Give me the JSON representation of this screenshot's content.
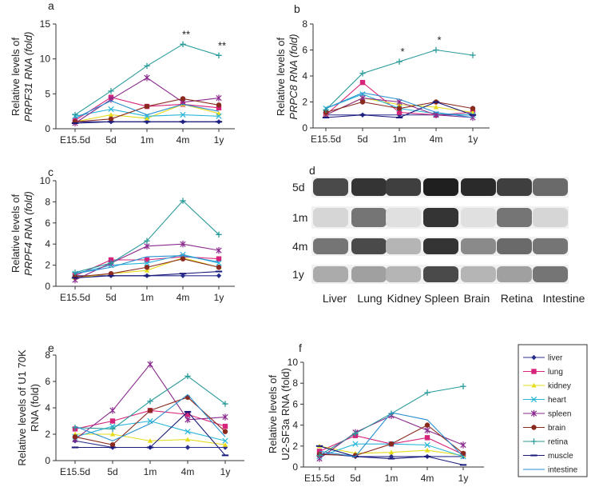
{
  "chart_data": [
    {
      "id": "a",
      "type": "line",
      "panel_label": "a",
      "ylabel_lines": [
        "Relative levels of",
        "PRPF31 RNA (fold)"
      ],
      "ylabel_italic": "PRPF31",
      "categories": [
        "E15.5d",
        "5d",
        "1m",
        "4m",
        "1y"
      ],
      "ylim": [
        0,
        15
      ],
      "yticks": [
        0,
        5,
        10,
        15
      ],
      "annotations": [
        {
          "category_index": 3,
          "text": "**"
        },
        {
          "category_index": 4,
          "text": "**"
        }
      ],
      "series": [
        {
          "name": "liver",
          "values": [
            1.0,
            1.0,
            1.0,
            1.0,
            1.0
          ]
        },
        {
          "name": "lung",
          "values": [
            1.2,
            4.5,
            3.2,
            3.5,
            3.0
          ]
        },
        {
          "name": "kidney",
          "values": [
            1.0,
            2.0,
            1.5,
            3.5,
            2.2
          ]
        },
        {
          "name": "heart",
          "values": [
            1.8,
            2.8,
            1.8,
            2.0,
            1.8
          ]
        },
        {
          "name": "spleen",
          "values": [
            0.8,
            4.2,
            7.3,
            3.8,
            4.4
          ]
        },
        {
          "name": "brain",
          "values": [
            1.0,
            1.4,
            3.2,
            4.3,
            3.4
          ]
        },
        {
          "name": "retina",
          "values": [
            2.0,
            5.4,
            9.0,
            12.1,
            10.5
          ]
        },
        {
          "name": "muscle",
          "values": [
            0.8,
            1.0,
            1.0,
            1.0,
            1.0
          ]
        },
        {
          "name": "intestine",
          "values": [
            1.5,
            4.0,
            2.0,
            3.5,
            2.5
          ]
        }
      ]
    },
    {
      "id": "b",
      "type": "line",
      "panel_label": "b",
      "ylabel_lines": [
        "Relative levels of",
        "PRPC8 RNA (fold)"
      ],
      "ylabel_italic": "PRPC8",
      "categories": [
        "E15.5d",
        "5d",
        "1m",
        "4m",
        "1y"
      ],
      "ylim": [
        0,
        8
      ],
      "yticks": [
        0,
        2,
        4,
        6,
        8
      ],
      "annotations": [
        {
          "category_index": 2,
          "text": "*"
        },
        {
          "category_index": 3,
          "text": "*"
        }
      ],
      "series": [
        {
          "name": "liver",
          "values": [
            1.0,
            1.0,
            1.0,
            1.0,
            1.0
          ]
        },
        {
          "name": "lung",
          "values": [
            1.0,
            3.5,
            1.2,
            1.0,
            1.2
          ]
        },
        {
          "name": "kidney",
          "values": [
            1.0,
            2.3,
            1.8,
            1.6,
            1.2
          ]
        },
        {
          "name": "heart",
          "values": [
            1.5,
            2.6,
            1.5,
            1.1,
            1.0
          ]
        },
        {
          "name": "spleen",
          "values": [
            1.0,
            2.3,
            2.0,
            1.0,
            0.8
          ]
        },
        {
          "name": "brain",
          "values": [
            1.2,
            2.0,
            1.5,
            2.0,
            1.5
          ]
        },
        {
          "name": "retina",
          "values": [
            1.4,
            4.2,
            5.1,
            6.0,
            5.6
          ]
        },
        {
          "name": "muscle",
          "values": [
            0.8,
            1.0,
            0.8,
            2.0,
            1.0
          ]
        },
        {
          "name": "intestine",
          "values": [
            1.5,
            2.7,
            2.2,
            1.2,
            0.8
          ]
        }
      ]
    },
    {
      "id": "c",
      "type": "line",
      "panel_label": "c",
      "ylabel_lines": [
        "Relative levels of",
        "PRPF4 RNA (fold)"
      ],
      "ylabel_italic": "PRPF4",
      "categories": [
        "E15.5d",
        "5d",
        "1m",
        "4m",
        "1y"
      ],
      "ylim": [
        0,
        10
      ],
      "yticks": [
        0,
        2,
        4,
        6,
        8,
        10
      ],
      "annotations": [],
      "series": [
        {
          "name": "liver",
          "values": [
            1.0,
            1.0,
            1.0,
            1.0,
            1.0
          ]
        },
        {
          "name": "lung",
          "values": [
            1.0,
            2.5,
            2.5,
            2.8,
            2.6
          ]
        },
        {
          "name": "kidney",
          "values": [
            0.8,
            1.2,
            1.5,
            2.7,
            1.8
          ]
        },
        {
          "name": "heart",
          "values": [
            1.2,
            2.0,
            2.2,
            3.0,
            2.2
          ]
        },
        {
          "name": "spleen",
          "values": [
            0.6,
            2.2,
            3.8,
            4.0,
            3.4
          ]
        },
        {
          "name": "brain",
          "values": [
            0.9,
            1.2,
            1.8,
            2.6,
            1.8
          ]
        },
        {
          "name": "retina",
          "values": [
            1.3,
            2.2,
            4.3,
            8.1,
            4.9
          ]
        },
        {
          "name": "muscle",
          "values": [
            0.8,
            1.0,
            1.0,
            1.2,
            1.4
          ]
        },
        {
          "name": "intestine",
          "values": [
            1.2,
            1.8,
            2.8,
            2.9,
            2.3
          ]
        }
      ]
    },
    {
      "id": "e",
      "type": "line",
      "panel_label": "e",
      "ylabel_lines": [
        "Relative levels of U1 70K",
        "RNA (fold)"
      ],
      "ylabel_italic": "",
      "categories": [
        "E15.5d",
        "5d",
        "1m",
        "4m",
        "1y"
      ],
      "ylim": [
        0,
        8
      ],
      "yticks": [
        0,
        2,
        4,
        6,
        8
      ],
      "annotations": [],
      "series": [
        {
          "name": "liver",
          "values": [
            1.5,
            1.0,
            1.0,
            1.0,
            1.0
          ]
        },
        {
          "name": "lung",
          "values": [
            2.4,
            3.0,
            3.8,
            3.5,
            2.6
          ]
        },
        {
          "name": "kidney",
          "values": [
            2.0,
            2.0,
            1.5,
            1.6,
            1.2
          ]
        },
        {
          "name": "heart",
          "values": [
            1.8,
            2.6,
            3.0,
            2.2,
            1.5
          ]
        },
        {
          "name": "spleen",
          "values": [
            1.6,
            3.8,
            7.3,
            3.1,
            3.3
          ]
        },
        {
          "name": "brain",
          "values": [
            1.8,
            1.2,
            3.8,
            4.8,
            2.2
          ]
        },
        {
          "name": "retina",
          "values": [
            2.5,
            2.4,
            4.5,
            6.4,
            4.3
          ]
        },
        {
          "name": "muscle",
          "values": [
            1.0,
            1.0,
            1.0,
            3.7,
            0.4
          ]
        },
        {
          "name": "intestine",
          "values": [
            2.6,
            1.5,
            2.8,
            5.0,
            1.8
          ]
        }
      ]
    },
    {
      "id": "f",
      "type": "line",
      "panel_label": "f",
      "ylabel_lines": [
        "Relative levels of",
        "U2-SF3a RNA (fold)"
      ],
      "ylabel_italic": "",
      "categories": [
        "E15.5d",
        "5d",
        "1m",
        "4m",
        "1y"
      ],
      "ylim": [
        0,
        10
      ],
      "yticks": [
        0,
        2,
        4,
        6,
        8,
        10
      ],
      "annotations": [],
      "series": [
        {
          "name": "liver",
          "values": [
            1.3,
            1.0,
            1.0,
            1.0,
            1.0
          ]
        },
        {
          "name": "lung",
          "values": [
            1.5,
            3.0,
            2.2,
            2.8,
            1.2
          ]
        },
        {
          "name": "kidney",
          "values": [
            2.0,
            1.3,
            1.4,
            1.6,
            1.1
          ]
        },
        {
          "name": "heart",
          "values": [
            1.0,
            2.2,
            2.2,
            2.1,
            1.0
          ]
        },
        {
          "name": "spleen",
          "values": [
            0.8,
            3.3,
            4.9,
            3.5,
            2.1
          ]
        },
        {
          "name": "brain",
          "values": [
            1.2,
            1.1,
            2.2,
            4.0,
            1.3
          ]
        },
        {
          "name": "retina",
          "values": [
            1.1,
            3.2,
            5.1,
            7.1,
            7.7
          ]
        },
        {
          "name": "muscle",
          "values": [
            2.0,
            1.0,
            0.8,
            1.0,
            0.2
          ]
        },
        {
          "name": "intestine",
          "values": [
            1.5,
            1.0,
            5.2,
            4.5,
            1.0
          ]
        }
      ]
    }
  ],
  "series_styles": [
    {
      "name": "liver",
      "color": "#2b2f8c",
      "marker": "diamond"
    },
    {
      "name": "lung",
      "color": "#d6247a",
      "marker": "square"
    },
    {
      "name": "kidney",
      "color": "#e6dc1e",
      "marker": "triangle"
    },
    {
      "name": "heart",
      "color": "#29b6d9",
      "marker": "x"
    },
    {
      "name": "spleen",
      "color": "#8a2a8e",
      "marker": "star"
    },
    {
      "name": "brain",
      "color": "#8a2a1e",
      "marker": "circle"
    },
    {
      "name": "retina",
      "color": "#2a9a9a",
      "marker": "plus"
    },
    {
      "name": "muscle",
      "color": "#1a1a7a",
      "marker": "dash"
    },
    {
      "name": "intestine",
      "color": "#2a90d0",
      "marker": "none"
    }
  ],
  "blot": {
    "panel_label": "d",
    "rows": [
      "5d",
      "1m",
      "4m",
      "1y"
    ],
    "tissues": [
      "Liver",
      "Lung",
      "Kidney",
      "Spleen",
      "Brain",
      "Retina",
      "Intestine"
    ],
    "intensity": [
      [
        0.75,
        0.85,
        0.8,
        0.95,
        0.9,
        0.8,
        0.6
      ],
      [
        0.1,
        0.55,
        0.05,
        0.85,
        0.05,
        0.55,
        0.1
      ],
      [
        0.55,
        0.75,
        0.25,
        0.85,
        0.45,
        0.6,
        0.55
      ],
      [
        0.3,
        0.35,
        0.25,
        0.75,
        0.25,
        0.35,
        0.55
      ]
    ]
  }
}
